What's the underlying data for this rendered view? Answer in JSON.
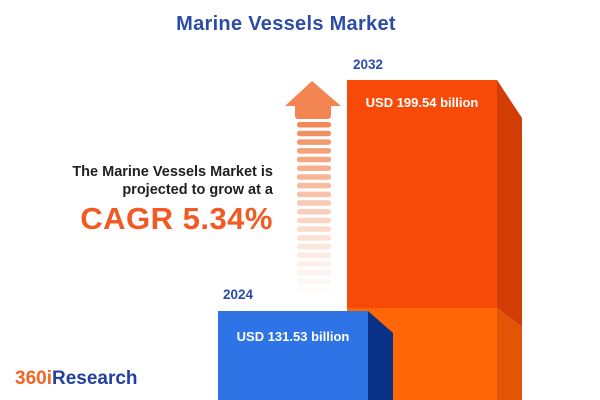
{
  "title": "Marine Vessels Market",
  "annotation": {
    "line1": "The Marine Vessels Market is",
    "line2": "projected to grow at a",
    "cagr": "CAGR 5.34%"
  },
  "chart_data": {
    "type": "bar",
    "title": "Marine Vessels Market",
    "categories": [
      "2024",
      "2032"
    ],
    "values": [
      131.53,
      199.54
    ],
    "unit": "USD billion",
    "value_labels": [
      "USD 131.53 billion",
      "USD 199.54 billion"
    ],
    "cagr_percent": 5.34,
    "annotation": "The Marine Vessels Market is projected to grow at a CAGR 5.34%",
    "ylim": [
      0,
      210
    ],
    "grid": false,
    "legend": "none",
    "orientation": "vertical",
    "style": "3d-infographic"
  },
  "logo": {
    "part1": "360i",
    "part2": "Research"
  },
  "colors": {
    "brand_blue": "#2B4DA8",
    "accent_orange": "#F15A22",
    "text_dark": "#1F1F1F",
    "white": "#FFFFFF",
    "arrow_orange": "#F28552",
    "bar2032_front": "#F74A08",
    "bar2032_side": "#D13D04",
    "bar2032_front_lower": "#FF6606",
    "bar2032_side_lower": "#E15504",
    "bar2024_front": "#2E74E6",
    "bar2024_side": "#0A3287",
    "logo_orange": "#F26522",
    "logo_blue": "#21409F"
  }
}
